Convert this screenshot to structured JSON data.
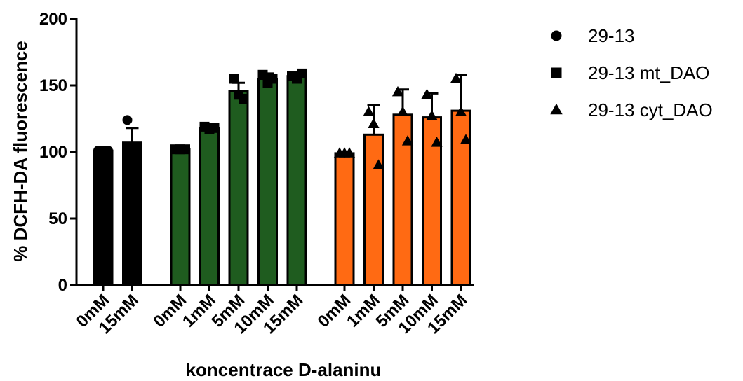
{
  "chart_data": {
    "type": "bar",
    "ylabel": "% DCFH-DA fluorescence",
    "xlabel": "koncentrace D-alaninu",
    "ylim": [
      0,
      200
    ],
    "yticks": [
      0,
      50,
      100,
      150,
      200
    ],
    "legend_position": "right",
    "series": [
      {
        "name": "29-13",
        "marker": "circle",
        "color": "#000000",
        "categories": [
          "0mM",
          "15mM"
        ],
        "values": [
          101,
          107
        ],
        "errors": [
          0,
          11
        ],
        "points": [
          [
            101,
            101,
            101
          ],
          [
            124,
            101,
            97
          ]
        ]
      },
      {
        "name": "29-13 mt_DAO",
        "marker": "square",
        "color": "#1f5c1f",
        "categories": [
          "0mM",
          "1mM",
          "5mM",
          "10mM",
          "15mM"
        ],
        "values": [
          102,
          118,
          146,
          155,
          157
        ],
        "errors": [
          0,
          2,
          6,
          4,
          3
        ],
        "points": [
          [
            102,
            102,
            102
          ],
          [
            119,
            117,
            118
          ],
          [
            155,
            143,
            140
          ],
          [
            158,
            152,
            155
          ],
          [
            157,
            155,
            159
          ]
        ]
      },
      {
        "name": "29-13 cyt_DAO",
        "marker": "triangle",
        "color": "#ff6a13",
        "categories": [
          "0mM",
          "1mM",
          "5mM",
          "10mM",
          "15mM"
        ],
        "values": [
          99,
          113,
          128,
          126,
          131
        ],
        "errors": [
          0,
          22,
          19,
          18,
          27
        ],
        "points": [
          [
            99,
            99,
            99
          ],
          [
            130,
            121,
            90
          ],
          [
            145,
            130,
            108
          ],
          [
            143,
            127,
            107
          ],
          [
            155,
            130,
            109
          ]
        ]
      }
    ]
  }
}
